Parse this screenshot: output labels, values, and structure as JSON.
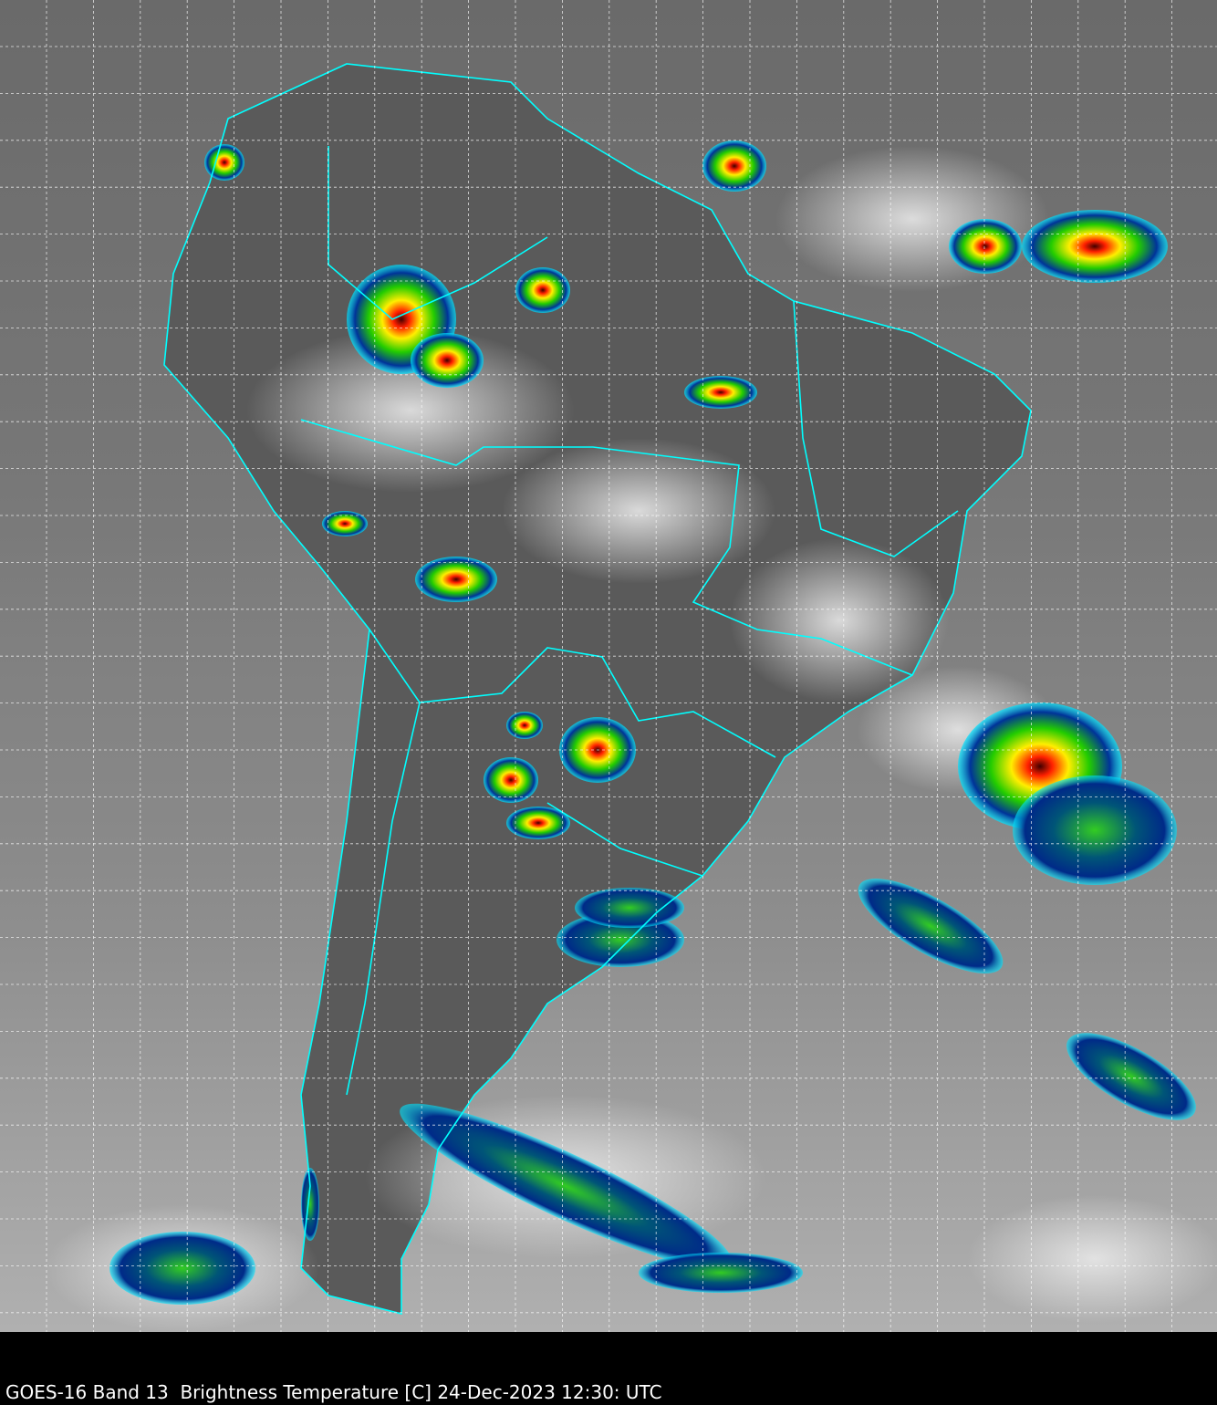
{
  "caption": "GOES-16 Band 13  Brightness Temperature [C] 24-Dec-2023 12:30: UTC",
  "map": {
    "region": "South America",
    "colors": {
      "coastline": "#00ffff",
      "grid": "#ffffff",
      "background": "#000000",
      "cold_cloud_scale": [
        "#00e5ff",
        "#0033aa",
        "#00cc00",
        "#ffff00",
        "#ff0000",
        "#400000"
      ]
    },
    "grid": true
  }
}
